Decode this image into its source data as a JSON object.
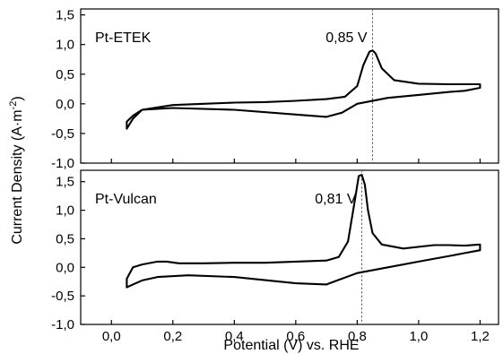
{
  "chart_data": {
    "type": "line",
    "xlabel": "Potential (V) vs. RHE",
    "ylabel": {
      "main": "Current Density (A·m",
      "sup": "-2",
      "end": ")"
    },
    "xlim": [
      -0.1,
      1.26
    ],
    "x_ticks": [
      "0,0",
      "0,2",
      "0,4",
      "0,6",
      "0,8",
      "1,0",
      "1,2"
    ],
    "x_tick_values": [
      0.0,
      0.2,
      0.4,
      0.6,
      0.8,
      1.0,
      1.2
    ],
    "panels": [
      {
        "label": "Pt-ETEK",
        "ylim": [
          -1.0,
          1.6
        ],
        "y_ticks": [
          "-1,0",
          "-0,5",
          "0,0",
          "0,5",
          "1,0",
          "1,5"
        ],
        "y_tick_values": [
          -1.0,
          -0.5,
          0.0,
          0.5,
          1.0,
          1.5
        ],
        "annotation": {
          "text": "0,85 V",
          "x": 0.85
        },
        "series": [
          {
            "x": [
              0.05,
              0.05,
              0.07,
              0.1,
              0.2,
              0.3,
              0.4,
              0.5,
              0.6,
              0.7,
              0.76,
              0.8,
              0.82,
              0.84,
              0.85,
              0.86,
              0.88,
              0.92,
              1.0,
              1.1,
              1.2,
              1.2,
              1.15,
              1.1,
              1.0,
              0.9,
              0.8,
              0.75,
              0.7,
              0.6,
              0.4,
              0.2,
              0.1,
              0.07,
              0.05
            ],
            "y": [
              -0.42,
              -0.3,
              -0.2,
              -0.1,
              -0.02,
              0.0,
              0.02,
              0.03,
              0.05,
              0.08,
              0.12,
              0.3,
              0.65,
              0.88,
              0.9,
              0.85,
              0.6,
              0.4,
              0.34,
              0.33,
              0.33,
              0.27,
              0.22,
              0.2,
              0.15,
              0.1,
              0.0,
              -0.15,
              -0.22,
              -0.18,
              -0.1,
              -0.07,
              -0.1,
              -0.25,
              -0.42
            ]
          }
        ]
      },
      {
        "label": "Pt-Vulcan",
        "ylim": [
          -1.0,
          1.7
        ],
        "y_ticks": [
          "-1,0",
          "-0,5",
          "0,0",
          "0,5",
          "1,0",
          "1,5"
        ],
        "y_tick_values": [
          -1.0,
          -0.5,
          0.0,
          0.5,
          1.0,
          1.5
        ],
        "annotation": {
          "text": "0,81 V",
          "x": 0.815
        },
        "series": [
          {
            "x": [
              0.05,
              0.05,
              0.07,
              0.1,
              0.15,
              0.18,
              0.22,
              0.3,
              0.4,
              0.5,
              0.6,
              0.7,
              0.74,
              0.77,
              0.79,
              0.805,
              0.815,
              0.825,
              0.835,
              0.85,
              0.88,
              0.95,
              1.05,
              1.1,
              1.15,
              1.2,
              1.2,
              1.15,
              1.1,
              1.0,
              0.9,
              0.8,
              0.75,
              0.7,
              0.6,
              0.4,
              0.25,
              0.15,
              0.1,
              0.07,
              0.05
            ],
            "y": [
              -0.35,
              -0.2,
              0.0,
              0.05,
              0.1,
              0.1,
              0.07,
              0.07,
              0.08,
              0.08,
              0.1,
              0.12,
              0.18,
              0.45,
              1.1,
              1.6,
              1.62,
              1.45,
              1.0,
              0.6,
              0.4,
              0.33,
              0.39,
              0.39,
              0.38,
              0.4,
              0.3,
              0.25,
              0.2,
              0.1,
              0.0,
              -0.1,
              -0.2,
              -0.3,
              -0.28,
              -0.17,
              -0.14,
              -0.17,
              -0.23,
              -0.3,
              -0.35
            ]
          }
        ]
      }
    ]
  }
}
